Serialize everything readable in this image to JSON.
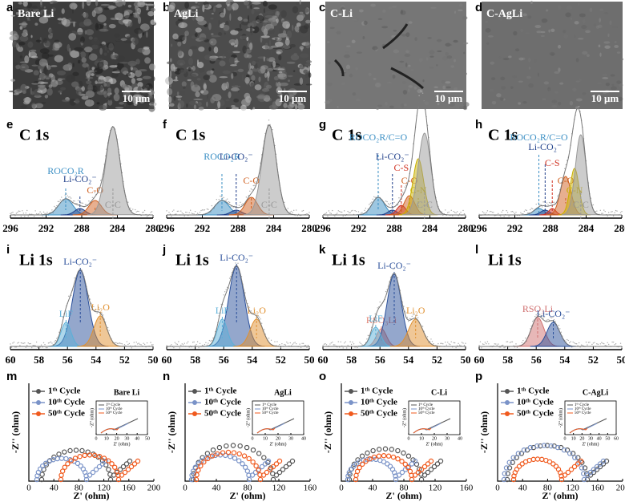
{
  "sem": [
    {
      "letter": "a",
      "label": "Bare Li",
      "scale": "10 μm"
    },
    {
      "letter": "b",
      "label": "AgLi",
      "scale": "10 μm"
    },
    {
      "letter": "c",
      "label": "C-Li",
      "scale": "10 μm"
    },
    {
      "letter": "d",
      "label": "C-AgLi",
      "scale": "10 μm"
    }
  ],
  "c1s": [
    {
      "letter": "e",
      "title": "C 1s",
      "peaks": [
        "ROCO₂R",
        "Li-CO₂⁻",
        "C-O",
        "C-C"
      ],
      "ticks": [
        296,
        292,
        288,
        284,
        280
      ]
    },
    {
      "letter": "f",
      "title": "C 1s",
      "peaks": [
        "ROCO₂R",
        "Li-CO₂⁻",
        "C-O",
        "C-C"
      ],
      "ticks": [
        296,
        292,
        288,
        284,
        280
      ]
    },
    {
      "letter": "g",
      "title": "C 1s",
      "peaks": [
        "ROCO₂R/C=O",
        "Li-CO₂⁻",
        "C-S",
        "C-O",
        "C-N",
        "C-C"
      ],
      "ticks": [
        296,
        292,
        288,
        284,
        280
      ]
    },
    {
      "letter": "h",
      "title": "C 1s",
      "peaks": [
        "ROCO₂R/C=O",
        "Li-CO₂⁻",
        "C-S",
        "C-O",
        "C-N",
        "C-C"
      ],
      "ticks": [
        296,
        292,
        288,
        284,
        280
      ]
    }
  ],
  "li1s": [
    {
      "letter": "i",
      "title": "Li 1s",
      "peaks": [
        "Li-CO₂⁻",
        "LiF",
        "Li₂O"
      ],
      "ticks": [
        60,
        58,
        56,
        54,
        52,
        50
      ]
    },
    {
      "letter": "j",
      "title": "Li 1s",
      "peaks": [
        "Li-CO₂⁻",
        "LiF",
        "Li₂O"
      ],
      "ticks": [
        60,
        58,
        56,
        54,
        52,
        50
      ]
    },
    {
      "letter": "k",
      "title": "Li 1s",
      "peaks": [
        "RSO₃Li",
        "Li-CO₂⁻",
        "LiF",
        "Li₂O"
      ],
      "ticks": [
        60,
        58,
        56,
        54,
        52,
        50
      ]
    },
    {
      "letter": "l",
      "title": "Li 1s",
      "peaks": [
        "RSO₃Li",
        "Li-CO₂⁻"
      ],
      "ticks": [
        60,
        58,
        56,
        54,
        52,
        50
      ]
    }
  ],
  "eis": [
    {
      "letter": "m",
      "sample": "Bare Li",
      "legend": [
        "1ᵗʰ Cycle",
        "10ᵗʰ Cycle",
        "50ᵗʰ Cycle"
      ],
      "y_label": "-Z'' (ohm)",
      "x_label": "Z' (ohm)",
      "xticks": [
        0,
        40,
        80,
        120,
        160,
        200
      ],
      "inset_xticks": [
        0,
        10,
        20,
        30,
        40,
        50
      ]
    },
    {
      "letter": "n",
      "sample": "AgLi",
      "legend": [
        "1ᵗʰ Cycle",
        "10ᵗʰ Cycle",
        "50ᵗʰ Cycle"
      ],
      "y_label": "-Z'' (ohm)",
      "x_label": "Z' (ohm)",
      "xticks": [
        0,
        40,
        80,
        120,
        160
      ],
      "inset_xticks": [
        0,
        10,
        20,
        30,
        40
      ]
    },
    {
      "letter": "o",
      "sample": "C-Li",
      "legend": [
        "1ᵗʰ Cycle",
        "10ᵗʰ Cycle",
        "50ᵗʰ Cycle"
      ],
      "y_label": "-Z'' (ohm)",
      "x_label": "Z' (ohm)",
      "xticks": [
        0,
        40,
        80,
        120,
        160
      ],
      "inset_xticks": [
        0,
        10,
        20,
        30,
        40
      ]
    },
    {
      "letter": "p",
      "sample": "C-AgLi",
      "legend": [
        "1ᵗʰ Cycle",
        "10ᵗʰ Cycle",
        "50ᵗʰ Cycle"
      ],
      "y_label": "-Z'' (ohm)",
      "x_label": "Z' (ohm)",
      "xticks": [
        0,
        40,
        80,
        120,
        160,
        200
      ],
      "inset_xticks": [
        0,
        10,
        20,
        30,
        40,
        50,
        60
      ]
    }
  ]
}
